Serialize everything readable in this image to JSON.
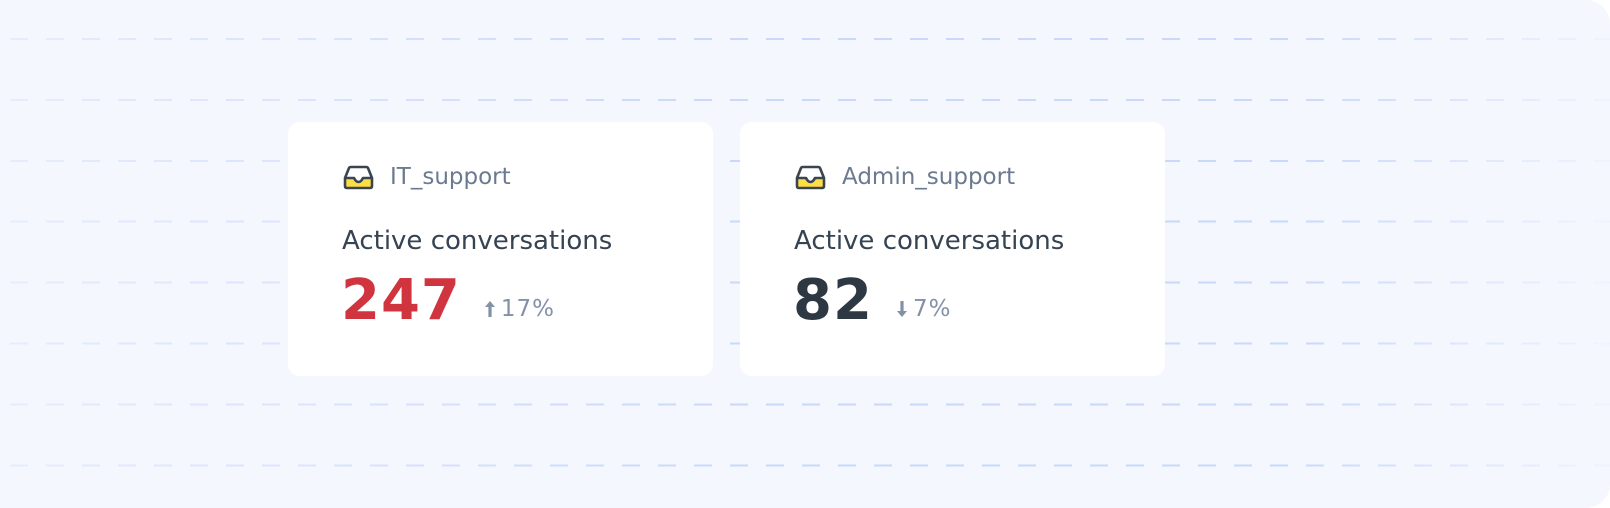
{
  "colors": {
    "background": "#f4f7fe",
    "gridline": "#c9d8fb",
    "card": "#ffffff",
    "critical": "#d0343f",
    "neutral": "#2d3843",
    "muted": "#8391a8",
    "icon_fill": "#ffdd44"
  },
  "cards": [
    {
      "icon": "inbox-icon",
      "name": "IT_support",
      "label": "Active conversations",
      "value": "247",
      "value_color": "#d0343f",
      "trend": "up",
      "trend_icon": "arrow-up-icon",
      "change": "17%"
    },
    {
      "icon": "inbox-icon",
      "name": "Admin_support",
      "label": "Active conversations",
      "value": "82",
      "value_color": "#2d3843",
      "trend": "down",
      "trend_icon": "arrow-down-icon",
      "change": "7%"
    }
  ]
}
